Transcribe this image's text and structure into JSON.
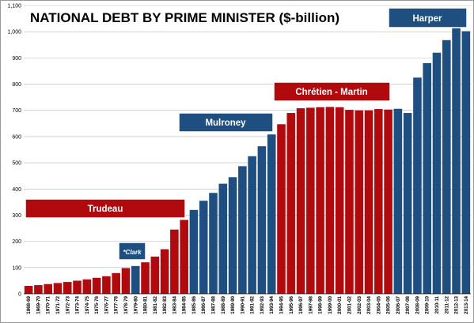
{
  "chart_data": {
    "type": "bar",
    "title": "NATIONAL DEBT BY PRIME MINISTER ($-billion)",
    "xlabel": "",
    "ylabel": "",
    "ylim": [
      0,
      1100
    ],
    "yticks": [
      0,
      100,
      200,
      300,
      400,
      500,
      600,
      700,
      800,
      900,
      1000,
      1100
    ],
    "ytick_labels": [
      "0",
      "100",
      "200",
      "300",
      "400",
      "500",
      "600",
      "700",
      "800",
      "900",
      "1,000",
      "1,100"
    ],
    "grid": true,
    "categories": [
      "1968-69",
      "1969-70",
      "1970-71",
      "1971-72",
      "1972-73",
      "1973-74",
      "1974-75",
      "1975-76",
      "1976-77",
      "1977-78",
      "1978-79",
      "1979-80",
      "1980-81",
      "1981-82",
      "1982-83",
      "1983-84",
      "1984-85",
      "1985-86",
      "1986-87",
      "1987-88",
      "1988-89",
      "1989-90",
      "1990-91",
      "1991-92",
      "1992-93",
      "1993-94",
      "1994-95",
      "1995-96",
      "1996-97",
      "1997-98",
      "1998-99",
      "1999-00",
      "2000-01",
      "2001-02",
      "2002-03",
      "2003-04",
      "2004-05",
      "2005-06",
      "2006-07",
      "2007-08",
      "2008-09",
      "2009-10",
      "2010-11",
      "2011-12",
      "2012-13",
      "2013-14"
    ],
    "values": [
      30,
      33,
      37,
      41,
      45,
      50,
      55,
      61,
      67,
      79,
      98,
      106,
      120,
      142,
      170,
      245,
      282,
      320,
      355,
      385,
      420,
      445,
      487,
      525,
      563,
      608,
      647,
      690,
      708,
      710,
      712,
      713,
      712,
      702,
      700,
      700,
      705,
      703,
      706,
      690,
      825,
      880,
      920,
      968,
      1015,
      1002
    ],
    "pm": [
      "T",
      "T",
      "T",
      "T",
      "T",
      "T",
      "T",
      "T",
      "T",
      "T",
      "T",
      "C",
      "T",
      "T",
      "T",
      "T",
      "T",
      "M",
      "M",
      "M",
      "M",
      "M",
      "M",
      "M",
      "M",
      "M",
      "CM",
      "CM",
      "CM",
      "CM",
      "CM",
      "CM",
      "CM",
      "CM",
      "CM",
      "CM",
      "CM",
      "CM",
      "H",
      "H",
      "H",
      "H",
      "H",
      "H",
      "H",
      "H"
    ],
    "colors": {
      "liberal": "#b00a0f",
      "conservative": "#1f4e80",
      "label_border": "#ffffff"
    },
    "annotations": [
      {
        "key": "trudeau",
        "text": "Trudeau",
        "party": "liberal"
      },
      {
        "key": "clark",
        "text": "*Clark",
        "party": "conservative"
      },
      {
        "key": "mulroney",
        "text": "Mulroney",
        "party": "conservative"
      },
      {
        "key": "chretien",
        "text": "Chrétien - Martin",
        "party": "liberal"
      },
      {
        "key": "harper",
        "text": "Harper",
        "party": "conservative"
      }
    ]
  }
}
